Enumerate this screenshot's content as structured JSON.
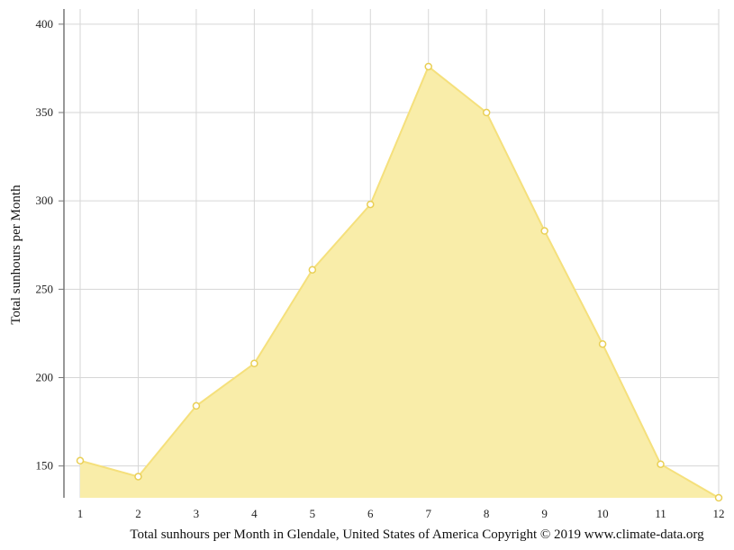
{
  "chart_data": {
    "type": "area",
    "title": "",
    "xlabel": "",
    "ylabel": "Total sunhours per Month",
    "caption": "Total sunhours per Month in Glendale, United States of America Copyright © 2019 www.climate-data.org",
    "x": [
      1,
      2,
      3,
      4,
      5,
      6,
      7,
      8,
      9,
      10,
      11,
      12
    ],
    "series": [
      {
        "values": [
          153,
          144,
          184,
          208,
          261,
          298,
          376,
          350,
          283,
          219,
          151,
          132
        ]
      }
    ],
    "ylim": [
      132,
      404
    ],
    "yticks": [
      150,
      200,
      250,
      300,
      350,
      400
    ],
    "grid": true,
    "legend": "none",
    "fill_color": "#f9eda9",
    "line_color": "#f5e07c",
    "point_fill": "#ffffff",
    "point_stroke": "#e9cf55"
  }
}
